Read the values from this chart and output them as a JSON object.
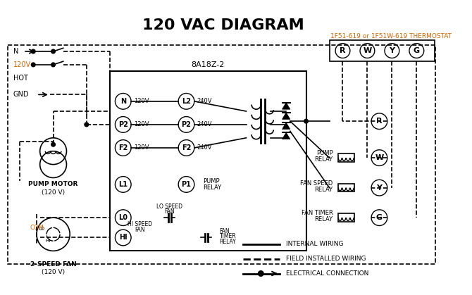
{
  "title": "120 VAC DIAGRAM",
  "title_fontsize": 16,
  "title_fontweight": "bold",
  "bg_color": "#ffffff",
  "line_color": "#000000",
  "orange_color": "#cc6600",
  "thermostat_label": "1F51-619 or 1F51W-619 THERMOSTAT",
  "control_box_label": "8A18Z-2",
  "legend_items": [
    {
      "label": "INTERNAL WIRING",
      "style": "solid",
      "marker": false
    },
    {
      "label": "FIELD INSTALLED WIRING",
      "style": "dashed",
      "marker": false
    },
    {
      "label": "ELECTRICAL CONNECTION",
      "style": "solid",
      "marker": true
    }
  ]
}
